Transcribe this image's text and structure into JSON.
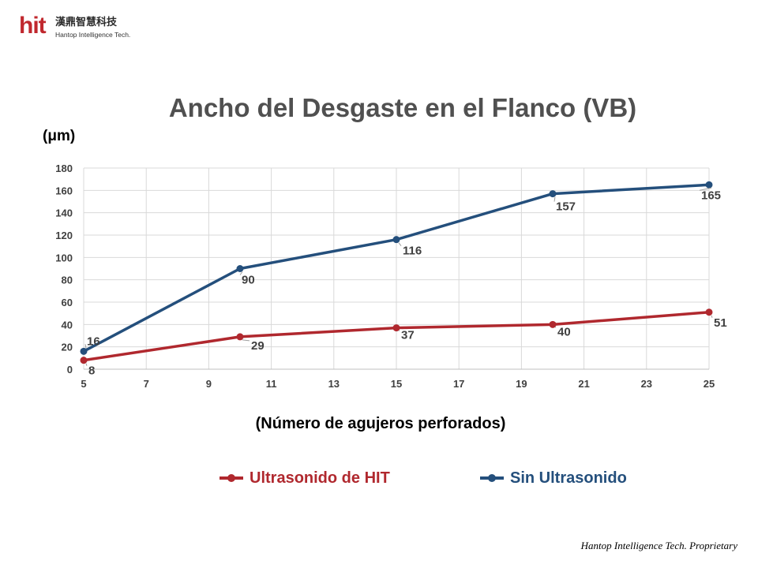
{
  "brand": {
    "logo_text": "hit",
    "name_cn": "漢鼎智慧科技",
    "name_en": "Hantop Intelligence Tech."
  },
  "chart_data": {
    "type": "line",
    "title": "Ancho del Desgaste en el Flanco (VB)",
    "ylabel": "(μm)",
    "xlabel": "(Número de agujeros perforados)",
    "xlim": [
      5,
      25
    ],
    "ylim": [
      0,
      180
    ],
    "xticks": [
      5,
      7,
      9,
      11,
      13,
      15,
      17,
      19,
      21,
      23,
      25
    ],
    "yticks": [
      0,
      20,
      40,
      60,
      80,
      100,
      120,
      140,
      160,
      180
    ],
    "grid": true,
    "legend_position": "bottom",
    "x": [
      5,
      10,
      15,
      20,
      25
    ],
    "series": [
      {
        "name": "Ultrasonido de HIT",
        "color": "#b0282e",
        "values": [
          8,
          29,
          37,
          40,
          51
        ]
      },
      {
        "name": "Sin Ultrasonido",
        "color": "#244f7c",
        "values": [
          16,
          90,
          116,
          157,
          165
        ]
      }
    ]
  },
  "footer": "Hantop Intelligence Tech. Proprietary"
}
